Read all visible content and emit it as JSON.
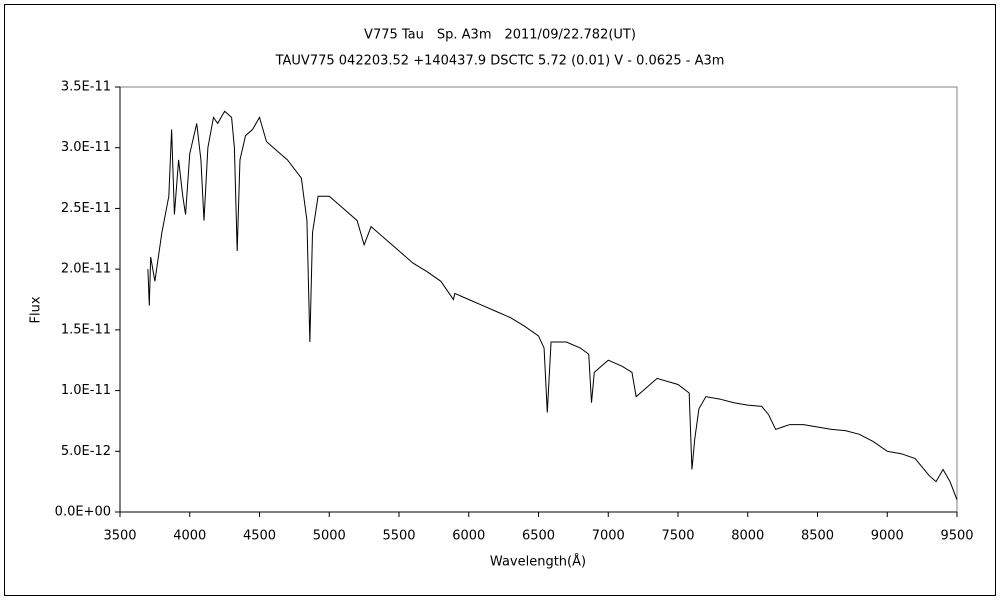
{
  "chart_data": {
    "type": "line",
    "title": "V775 Tau　Sp. A3m　2011/09/22.782(UT)",
    "subtitle": "TAUV775 042203.52 +140437.9 DSCTC 5.72 (0.01) V - 0.0625 - A3m",
    "x_label": "Wavelength(Å)",
    "y_label": "Flux",
    "xlim": [
      3500,
      9500
    ],
    "xticks": [
      3500,
      4000,
      4500,
      5000,
      5500,
      6000,
      6500,
      7000,
      7500,
      8000,
      8500,
      9000,
      9500
    ],
    "ylim": [
      0,
      3.5e-11
    ],
    "yticks": [
      {
        "value": 0,
        "label": "0.0E+00"
      },
      {
        "value": 5e-12,
        "label": "5.0E-12"
      },
      {
        "value": 1e-11,
        "label": "1.0E-11"
      },
      {
        "value": 1.5e-11,
        "label": "1.5E-11"
      },
      {
        "value": 2e-11,
        "label": "2.0E-11"
      },
      {
        "value": 2.5e-11,
        "label": "2.5E-11"
      },
      {
        "value": 3e-11,
        "label": "3.0E-11"
      },
      {
        "value": 3.5e-11,
        "label": "3.5E-11"
      }
    ],
    "grid": false,
    "series": [
      {
        "color": "#000000",
        "x": [
          3700,
          3710,
          3720,
          3750,
          3800,
          3850,
          3870,
          3890,
          3920,
          3950,
          3970,
          4000,
          4050,
          4080,
          4102,
          4130,
          4170,
          4200,
          4250,
          4300,
          4320,
          4340,
          4360,
          4400,
          4450,
          4500,
          4550,
          4600,
          4700,
          4800,
          4840,
          4861,
          4880,
          4920,
          5000,
          5100,
          5200,
          5250,
          5300,
          5400,
          5500,
          5600,
          5700,
          5800,
          5890,
          5900,
          6000,
          6100,
          6200,
          6300,
          6400,
          6500,
          6540,
          6563,
          6590,
          6700,
          6800,
          6860,
          6880,
          6900,
          6950,
          7000,
          7100,
          7170,
          7200,
          7250,
          7300,
          7350,
          7500,
          7580,
          7600,
          7620,
          7650,
          7700,
          7800,
          7900,
          8000,
          8100,
          8150,
          8200,
          8250,
          8300,
          8400,
          8500,
          8600,
          8700,
          8800,
          8900,
          9000,
          9100,
          9200,
          9300,
          9350,
          9400,
          9450,
          9500
        ],
        "values": [
          2e-11,
          1.7e-11,
          2.1e-11,
          1.9e-11,
          2.3e-11,
          2.6e-11,
          3.15e-11,
          2.45e-11,
          2.9e-11,
          2.6e-11,
          2.45e-11,
          2.95e-11,
          3.2e-11,
          2.9e-11,
          2.4e-11,
          3e-11,
          3.25e-11,
          3.2e-11,
          3.3e-11,
          3.25e-11,
          3e-11,
          2.15e-11,
          2.9e-11,
          3.1e-11,
          3.15e-11,
          3.25e-11,
          3.05e-11,
          3e-11,
          2.9e-11,
          2.75e-11,
          2.4e-11,
          1.4e-11,
          2.3e-11,
          2.6e-11,
          2.6e-11,
          2.5e-11,
          2.4e-11,
          2.2e-11,
          2.35e-11,
          2.25e-11,
          2.15e-11,
          2.05e-11,
          1.98e-11,
          1.9e-11,
          1.75e-11,
          1.8e-11,
          1.75e-11,
          1.7e-11,
          1.65e-11,
          1.6e-11,
          1.53e-11,
          1.45e-11,
          1.35e-11,
          8.2e-12,
          1.4e-11,
          1.4e-11,
          1.35e-11,
          1.3e-11,
          9e-12,
          1.15e-11,
          1.2e-11,
          1.25e-11,
          1.2e-11,
          1.15e-11,
          9.5e-12,
          1e-11,
          1.05e-11,
          1.1e-11,
          1.05e-11,
          9.8e-12,
          3.5e-12,
          6e-12,
          8.5e-12,
          9.5e-12,
          9.3e-12,
          9e-12,
          8.8e-12,
          8.7e-12,
          8e-12,
          6.8e-12,
          7e-12,
          7.2e-12,
          7.2e-12,
          7e-12,
          6.8e-12,
          6.7e-12,
          6.4e-12,
          5.8e-12,
          5e-12,
          4.8e-12,
          4.4e-12,
          3e-12,
          2.5e-12,
          3.5e-12,
          2.5e-12,
          1e-12
        ]
      }
    ]
  }
}
